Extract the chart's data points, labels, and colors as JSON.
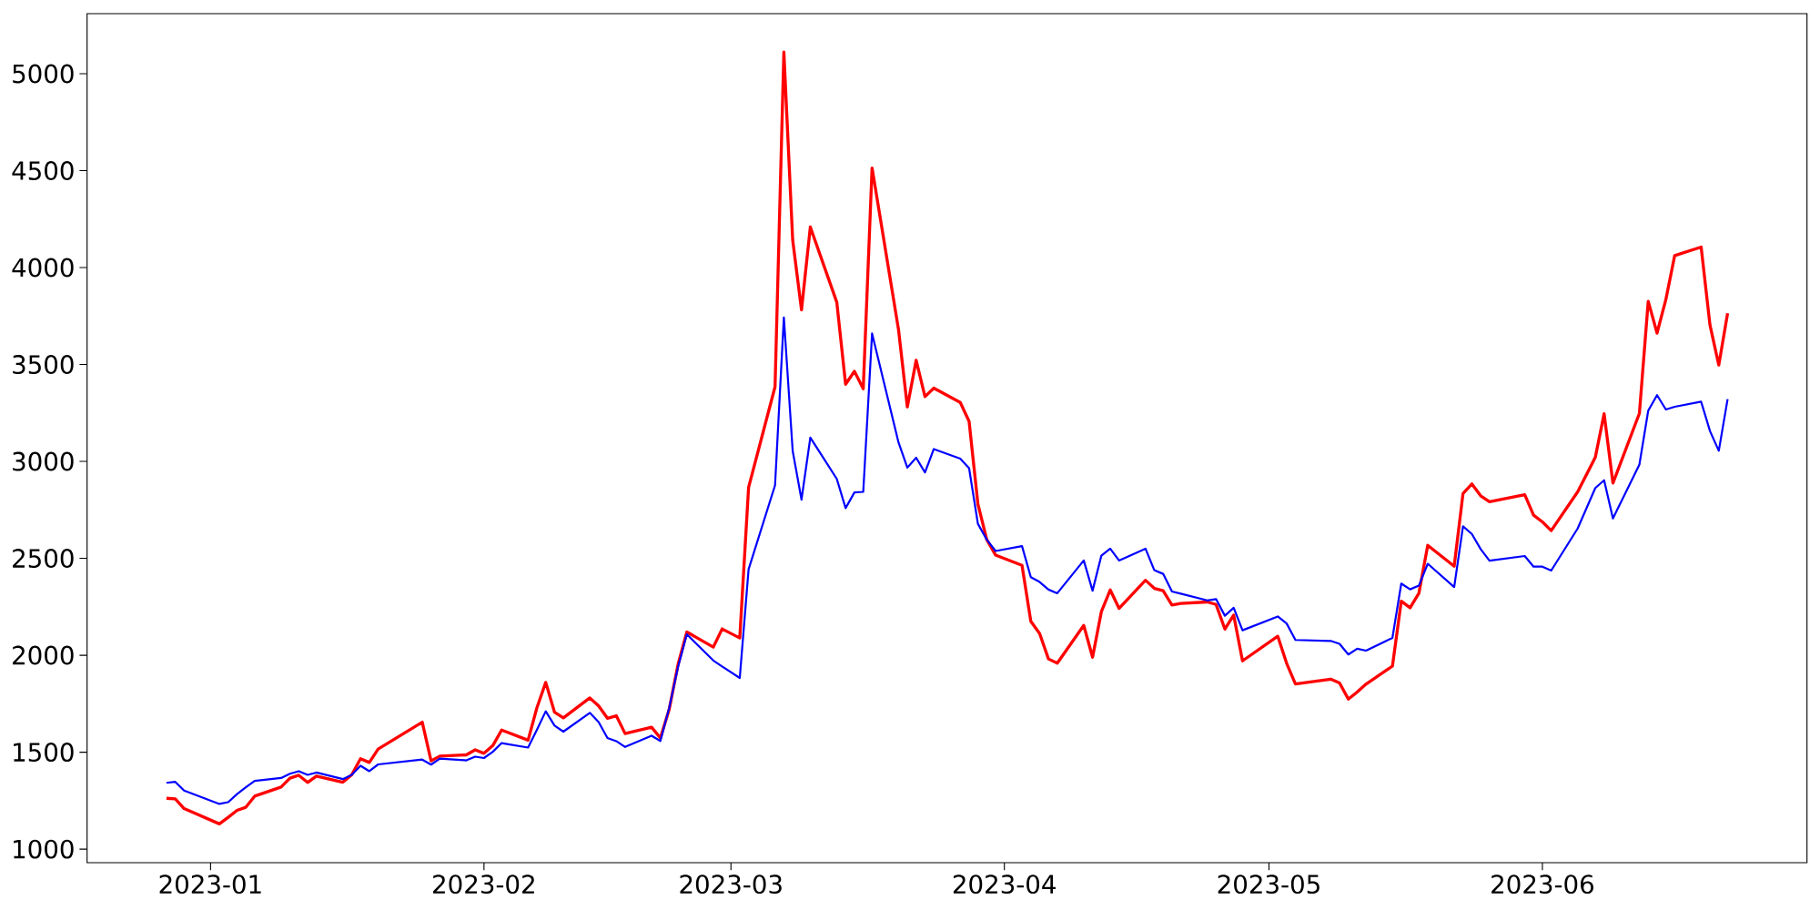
{
  "chart_data": {
    "type": "line",
    "x": [
      "2022-12-27",
      "2022-12-28",
      "2022-12-29",
      "2023-01-02",
      "2023-01-03",
      "2023-01-04",
      "2023-01-05",
      "2023-01-06",
      "2023-01-09",
      "2023-01-10",
      "2023-01-11",
      "2023-01-12",
      "2023-01-13",
      "2023-01-16",
      "2023-01-17",
      "2023-01-18",
      "2023-01-19",
      "2023-01-20",
      "2023-01-25",
      "2023-01-26",
      "2023-01-27",
      "2023-01-30",
      "2023-01-31",
      "2023-02-01",
      "2023-02-02",
      "2023-02-03",
      "2023-02-06",
      "2023-02-07",
      "2023-02-08",
      "2023-02-09",
      "2023-02-10",
      "2023-02-13",
      "2023-02-14",
      "2023-02-15",
      "2023-02-16",
      "2023-02-17",
      "2023-02-20",
      "2023-02-21",
      "2023-02-22",
      "2023-02-23",
      "2023-02-24",
      "2023-02-27",
      "2023-02-28",
      "2023-03-02",
      "2023-03-03",
      "2023-03-06",
      "2023-03-07",
      "2023-03-08",
      "2023-03-09",
      "2023-03-10",
      "2023-03-13",
      "2023-03-14",
      "2023-03-15",
      "2023-03-16",
      "2023-03-17",
      "2023-03-20",
      "2023-03-21",
      "2023-03-22",
      "2023-03-23",
      "2023-03-24",
      "2023-03-27",
      "2023-03-28",
      "2023-03-29",
      "2023-03-30",
      "2023-03-31",
      "2023-04-03",
      "2023-04-04",
      "2023-04-05",
      "2023-04-06",
      "2023-04-07",
      "2023-04-10",
      "2023-04-11",
      "2023-04-12",
      "2023-04-13",
      "2023-04-14",
      "2023-04-17",
      "2023-04-18",
      "2023-04-19",
      "2023-04-20",
      "2023-04-21",
      "2023-04-24",
      "2023-04-25",
      "2023-04-26",
      "2023-04-27",
      "2023-04-28",
      "2023-05-02",
      "2023-05-03",
      "2023-05-04",
      "2023-05-08",
      "2023-05-09",
      "2023-05-10",
      "2023-05-11",
      "2023-05-12",
      "2023-05-15",
      "2023-05-16",
      "2023-05-17",
      "2023-05-18",
      "2023-05-19",
      "2023-05-22",
      "2023-05-23",
      "2023-05-24",
      "2023-05-25",
      "2023-05-26",
      "2023-05-30",
      "2023-05-31",
      "2023-06-01",
      "2023-06-02",
      "2023-06-05",
      "2023-06-07",
      "2023-06-08",
      "2023-06-09",
      "2023-06-12",
      "2023-06-13",
      "2023-06-14",
      "2023-06-15",
      "2023-06-16",
      "2023-06-19",
      "2023-06-20",
      "2023-06-21",
      "2023-06-22"
    ],
    "series": [
      {
        "color": "#ff0000",
        "values": [
          1262,
          1259,
          1209,
          1130,
          1164,
          1200,
          1216,
          1273,
          1320,
          1366,
          1381,
          1344,
          1377,
          1345,
          1383,
          1466,
          1447,
          1516,
          1655,
          1455,
          1480,
          1486,
          1512,
          1494,
          1534,
          1614,
          1562,
          1729,
          1860,
          1706,
          1677,
          1780,
          1739,
          1675,
          1688,
          1596,
          1629,
          1573,
          1721,
          1952,
          2120,
          2042,
          2136,
          2089,
          2866,
          3385,
          5112,
          4142,
          3782,
          4209,
          3821,
          3398,
          3465,
          3375,
          4514,
          3680,
          3281,
          3522,
          3334,
          3378,
          3304,
          3207,
          2780,
          2597,
          2517,
          2464,
          2175,
          2112,
          1981,
          1959,
          2154,
          1990,
          2225,
          2337,
          2242,
          2387,
          2345,
          2333,
          2259,
          2267,
          2275,
          2262,
          2135,
          2207,
          1971,
          2098,
          1959,
          1852,
          1877,
          1857,
          1774,
          1810,
          1851,
          1944,
          2279,
          2245,
          2320,
          2567,
          2459,
          2834,
          2884,
          2823,
          2792,
          2828,
          2723,
          2688,
          2643,
          2843,
          3021,
          3246,
          2888,
          3248,
          3826,
          3662,
          3835,
          4062,
          4106,
          3704,
          3497,
          3764
        ]
      },
      {
        "color": "#0000ff",
        "values": [
          1342,
          1347,
          1302,
          1233,
          1242,
          1284,
          1319,
          1352,
          1367,
          1389,
          1402,
          1383,
          1395,
          1361,
          1383,
          1430,
          1402,
          1437,
          1462,
          1436,
          1467,
          1458,
          1477,
          1470,
          1502,
          1547,
          1524,
          1615,
          1711,
          1637,
          1606,
          1703,
          1655,
          1573,
          1557,
          1527,
          1585,
          1558,
          1729,
          1939,
          2108,
          1973,
          1942,
          1883,
          2443,
          2877,
          3743,
          3054,
          2803,
          3123,
          2910,
          2759,
          2840,
          2843,
          3660,
          3098,
          2968,
          3019,
          2943,
          3064,
          3014,
          2965,
          2678,
          2597,
          2538,
          2563,
          2403,
          2378,
          2339,
          2320,
          2489,
          2333,
          2514,
          2550,
          2489,
          2550,
          2439,
          2420,
          2329,
          2318,
          2283,
          2290,
          2204,
          2245,
          2129,
          2200,
          2164,
          2079,
          2074,
          2059,
          2004,
          2034,
          2024,
          2090,
          2370,
          2340,
          2359,
          2472,
          2352,
          2665,
          2626,
          2548,
          2488,
          2512,
          2457,
          2457,
          2437,
          2654,
          2863,
          2903,
          2706,
          2984,
          3262,
          3342,
          3268,
          3282,
          3308,
          3157,
          3055,
          3321
        ]
      }
    ],
    "xlim": [
      "2022-12-18",
      "2023-07-01"
    ],
    "ylim": [
      930,
      5310
    ],
    "xticks": [
      {
        "value": "2023-01-01",
        "label": "2023-01"
      },
      {
        "value": "2023-02-01",
        "label": "2023-02"
      },
      {
        "value": "2023-03-01",
        "label": "2023-03"
      },
      {
        "value": "2023-04-01",
        "label": "2023-04"
      },
      {
        "value": "2023-05-01",
        "label": "2023-05"
      },
      {
        "value": "2023-06-01",
        "label": "2023-06"
      }
    ],
    "yticks": [
      1000,
      1500,
      2000,
      2500,
      3000,
      3500,
      4000,
      4500,
      5000
    ]
  }
}
